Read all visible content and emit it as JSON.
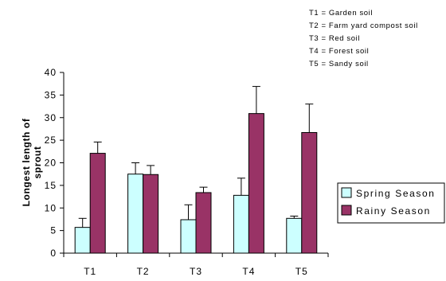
{
  "chart_data": {
    "type": "bar",
    "title": "",
    "xlabel": "",
    "ylabel_lines": [
      "Longest length of",
      "sprout"
    ],
    "categories": [
      "T1",
      "T2",
      "T3",
      "T4",
      "T5"
    ],
    "ylim": [
      0,
      40
    ],
    "yticks": [
      "0",
      "5",
      "10",
      "15",
      "20",
      "25",
      "30",
      "35",
      "40"
    ],
    "grid": false,
    "legend_position": "right",
    "series": [
      {
        "name": "Spring Season",
        "color": "#ccffff",
        "values": [
          5.7,
          17.5,
          7.4,
          12.8,
          7.7
        ],
        "errors": [
          2.0,
          2.5,
          3.3,
          3.8,
          0.5
        ]
      },
      {
        "name": "Rainy Season",
        "color": "#993366",
        "values": [
          22.1,
          17.4,
          13.4,
          30.9,
          26.7
        ],
        "errors": [
          2.5,
          2.0,
          1.2,
          6.0,
          6.3
        ]
      }
    ],
    "annotations": [
      "T1 = Garden soil",
      "T2 = Farm yard compost soil",
      "T3 = Red soil",
      "T4 = Forest soil",
      "T5 = Sandy soil"
    ]
  }
}
